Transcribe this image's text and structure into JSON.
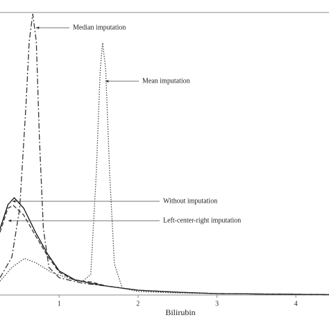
{
  "chart_data": {
    "type": "line",
    "xlabel": "Bilirubin",
    "xlim": [
      0.25,
      4.42
    ],
    "ylim": [
      0,
      4.1
    ],
    "xticks": [
      1,
      2,
      3,
      4
    ],
    "annotations": [
      "Median imputation",
      "Mean imputation",
      "Without imputation",
      "Left-center-right imputation"
    ],
    "series": [
      {
        "name": "Median imputation",
        "color": "#333333",
        "dash": "8 3 2 3",
        "x": [
          0.25,
          0.4,
          0.5,
          0.58,
          0.62,
          0.665,
          0.71,
          0.75,
          0.8,
          0.87,
          1.0,
          1.3,
          1.6,
          2.0,
          2.5,
          3.0,
          4.0,
          4.42
        ],
        "values": [
          0.25,
          0.55,
          1.26,
          2.77,
          3.68,
          4.08,
          3.68,
          2.27,
          0.96,
          0.4,
          0.25,
          0.17,
          0.13,
          0.07,
          0.04,
          0.02,
          0.01,
          0.005
        ]
      },
      {
        "name": "Mean imputation",
        "color": "#444444",
        "dash": "1.5 2",
        "x": [
          0.25,
          0.4,
          0.56,
          0.7,
          0.9,
          1.1,
          1.3,
          1.4,
          1.47,
          1.52,
          1.55,
          1.59,
          1.64,
          1.7,
          1.8,
          2.0,
          2.5,
          3.0,
          4.0,
          4.42
        ],
        "values": [
          0.2,
          0.4,
          0.53,
          0.47,
          0.33,
          0.25,
          0.2,
          0.3,
          1.76,
          3.27,
          3.66,
          3.27,
          1.76,
          0.45,
          0.1,
          0.05,
          0.03,
          0.02,
          0.01,
          0.005
        ]
      },
      {
        "name": "Without imputation",
        "color": "#111111",
        "dash": "none",
        "x": [
          0.25,
          0.35,
          0.43,
          0.55,
          0.7,
          0.85,
          1.0,
          1.2,
          1.4,
          1.6,
          2.0,
          2.5,
          3.0,
          4.0,
          4.42
        ],
        "values": [
          0.96,
          1.31,
          1.41,
          1.26,
          0.91,
          0.6,
          0.35,
          0.22,
          0.17,
          0.13,
          0.07,
          0.04,
          0.02,
          0.01,
          0.005
        ]
      },
      {
        "name": "Left-center-right imputation",
        "color": "#333333",
        "dash": "6 3",
        "x": [
          0.25,
          0.35,
          0.42,
          0.55,
          0.7,
          0.85,
          1.0,
          1.2,
          1.4,
          1.6,
          2.0,
          2.5,
          3.0,
          4.0,
          4.42
        ],
        "values": [
          0.91,
          1.26,
          1.3,
          1.16,
          0.86,
          0.57,
          0.33,
          0.21,
          0.19,
          0.13,
          0.07,
          0.04,
          0.02,
          0.01,
          0.005
        ]
      }
    ]
  }
}
